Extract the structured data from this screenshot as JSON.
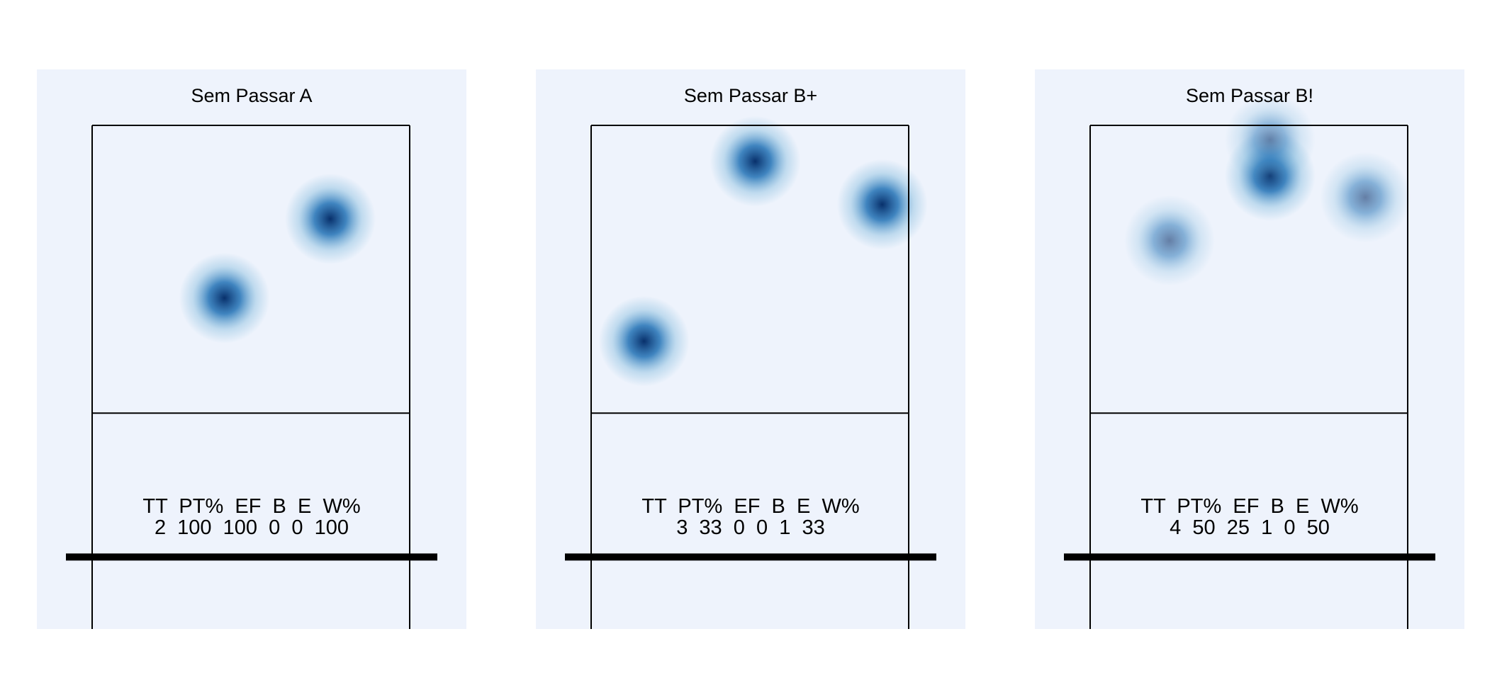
{
  "chart_data": [
    {
      "type": "heatmap",
      "title": "Sem Passar A",
      "court": {
        "x_range": [
          0.5,
          3.5
        ],
        "y_range": [
          0,
          3.5
        ],
        "attack_line_y": 2,
        "net_y": 3
      },
      "hotspots": [
        {
          "x": 1.75,
          "y": 1.2,
          "intensity": 1.0
        },
        {
          "x": 2.75,
          "y": 0.65,
          "intensity": 1.0
        }
      ],
      "stats": {
        "headers": [
          "TT",
          "PT%",
          "EF",
          "B",
          "E",
          "W%"
        ],
        "values": [
          "2",
          "100",
          "100",
          "0",
          "0",
          "100"
        ]
      }
    },
    {
      "type": "heatmap",
      "title": "Sem Passar B+",
      "court": {
        "x_range": [
          0.5,
          3.5
        ],
        "y_range": [
          0,
          3.5
        ],
        "attack_line_y": 2,
        "net_y": 3
      },
      "hotspots": [
        {
          "x": 2.05,
          "y": 0.25,
          "intensity": 1.0
        },
        {
          "x": 3.25,
          "y": 0.55,
          "intensity": 1.0
        },
        {
          "x": 1.0,
          "y": 1.5,
          "intensity": 1.0
        }
      ],
      "stats": {
        "headers": [
          "TT",
          "PT%",
          "EF",
          "B",
          "E",
          "W%"
        ],
        "values": [
          "3",
          "33",
          "0",
          "0",
          "1",
          "33"
        ]
      }
    },
    {
      "type": "heatmap",
      "title": "Sem Passar B!",
      "court": {
        "x_range": [
          0.5,
          3.5
        ],
        "y_range": [
          0,
          3.5
        ],
        "attack_line_y": 2,
        "net_y": 3
      },
      "hotspots": [
        {
          "x": 2.2,
          "y": 0.35,
          "intensity": 1.0
        },
        {
          "x": 2.2,
          "y": 0.1,
          "intensity": 0.55
        },
        {
          "x": 1.25,
          "y": 0.8,
          "intensity": 0.6
        },
        {
          "x": 3.1,
          "y": 0.5,
          "intensity": 0.6
        }
      ],
      "stats": {
        "headers": [
          "TT",
          "PT%",
          "EF",
          "B",
          "E",
          "W%"
        ],
        "values": [
          "4",
          "50",
          "25",
          "1",
          "0",
          "50"
        ]
      }
    }
  ],
  "colors": {
    "panel_background": "#eef3fc",
    "heat_core": "#08306b",
    "heat_mid": "#2171b5",
    "heat_edge": "#6baed6",
    "court_lines": "#000000"
  }
}
